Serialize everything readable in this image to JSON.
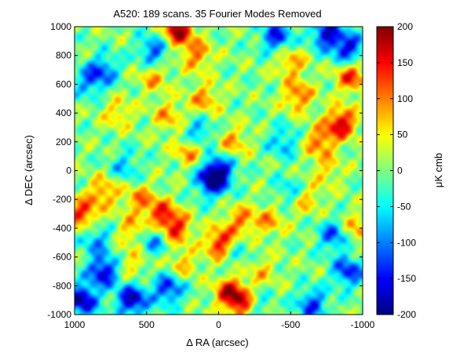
{
  "chart_data": {
    "type": "heatmap",
    "title": "A520: 189 scans. 35 Fourier Modes Removed",
    "xlabel": "Δ RA (arcsec)",
    "ylabel": "Δ DEC (arcsec)",
    "colorbar_label": "μK cmb",
    "xlim": [
      1000,
      -1000
    ],
    "ylim": [
      -1000,
      1000
    ],
    "x_ticks": [
      1000,
      500,
      0,
      -500,
      -1000
    ],
    "y_ticks": [
      1000,
      800,
      600,
      400,
      200,
      0,
      -200,
      -400,
      -600,
      -800,
      -1000
    ],
    "clim": [
      -200,
      200
    ],
    "colorbar_ticks": [
      200,
      150,
      100,
      50,
      0,
      -50,
      -100,
      -150,
      -200
    ],
    "colormap": "jet",
    "grid": false,
    "features": [
      {
        "ra": 0,
        "dec": 0,
        "value": -160
      },
      {
        "ra": 50,
        "dec": -80,
        "value": -150
      },
      {
        "ra": 150,
        "dec": 250,
        "value": -110
      },
      {
        "ra": 450,
        "dec": 830,
        "value": -120
      },
      {
        "ra": 800,
        "dec": 700,
        "value": -100
      },
      {
        "ra": 900,
        "dec": 620,
        "value": -90
      },
      {
        "ra": 650,
        "dec": 30,
        "value": -70
      },
      {
        "ra": 800,
        "dec": -700,
        "value": -170
      },
      {
        "ra": 950,
        "dec": -900,
        "value": -190
      },
      {
        "ra": 600,
        "dec": -900,
        "value": -180
      },
      {
        "ra": 350,
        "dec": -820,
        "value": -140
      },
      {
        "ra": 450,
        "dec": -480,
        "value": -100
      },
      {
        "ra": 850,
        "dec": -480,
        "value": -90
      },
      {
        "ra": -450,
        "dec": 200,
        "value": -80
      },
      {
        "ra": -500,
        "dec": -150,
        "value": -70
      },
      {
        "ra": -750,
        "dec": 950,
        "value": -160
      },
      {
        "ra": -900,
        "dec": 850,
        "value": -150
      },
      {
        "ra": -400,
        "dec": 930,
        "value": -140
      },
      {
        "ra": -800,
        "dec": -450,
        "value": -120
      },
      {
        "ra": -900,
        "dec": -700,
        "value": -140
      },
      {
        "ra": -650,
        "dec": -930,
        "value": -130
      },
      {
        "ra": -250,
        "dec": -930,
        "value": -90
      },
      {
        "ra": -100,
        "dec": -550,
        "value": -80
      },
      {
        "ra": 280,
        "dec": 970,
        "value": 180
      },
      {
        "ra": -850,
        "dec": 330,
        "value": 170
      },
      {
        "ra": -920,
        "dec": 650,
        "value": 130
      },
      {
        "ra": -550,
        "dec": 520,
        "value": 110
      },
      {
        "ra": -700,
        "dec": 200,
        "value": 110
      },
      {
        "ra": -500,
        "dec": 750,
        "value": 90
      },
      {
        "ra": -100,
        "dec": 200,
        "value": 80
      },
      {
        "ra": 200,
        "dec": 150,
        "value": 110
      },
      {
        "ra": 350,
        "dec": 380,
        "value": 80
      },
      {
        "ra": 100,
        "dec": 500,
        "value": 90
      },
      {
        "ra": 450,
        "dec": 650,
        "value": 80
      },
      {
        "ra": 150,
        "dec": 800,
        "value": 100
      },
      {
        "ra": 300,
        "dec": -400,
        "value": 140
      },
      {
        "ra": 400,
        "dec": -300,
        "value": 120
      },
      {
        "ra": 600,
        "dec": -420,
        "value": 80
      },
      {
        "ra": 800,
        "dec": -150,
        "value": 100
      },
      {
        "ra": 950,
        "dec": -300,
        "value": 140
      },
      {
        "ra": 550,
        "dec": -200,
        "value": 90
      },
      {
        "ra": -20,
        "dec": -510,
        "value": 180
      },
      {
        "ra": -80,
        "dec": -850,
        "value": 160
      },
      {
        "ra": -180,
        "dec": -930,
        "value": 150
      },
      {
        "ra": -150,
        "dec": -350,
        "value": 100
      },
      {
        "ra": -350,
        "dec": -350,
        "value": 80
      },
      {
        "ra": -600,
        "dec": -200,
        "value": 80
      },
      {
        "ra": -950,
        "dec": -400,
        "value": 90
      },
      {
        "ra": -750,
        "dec": 0,
        "value": 60
      },
      {
        "ra": 700,
        "dec": 400,
        "value": 70
      },
      {
        "ra": 600,
        "dec": -650,
        "value": 60
      },
      {
        "ra": 250,
        "dec": -650,
        "value": 70
      },
      {
        "ra": -300,
        "dec": -700,
        "value": 60
      }
    ]
  }
}
